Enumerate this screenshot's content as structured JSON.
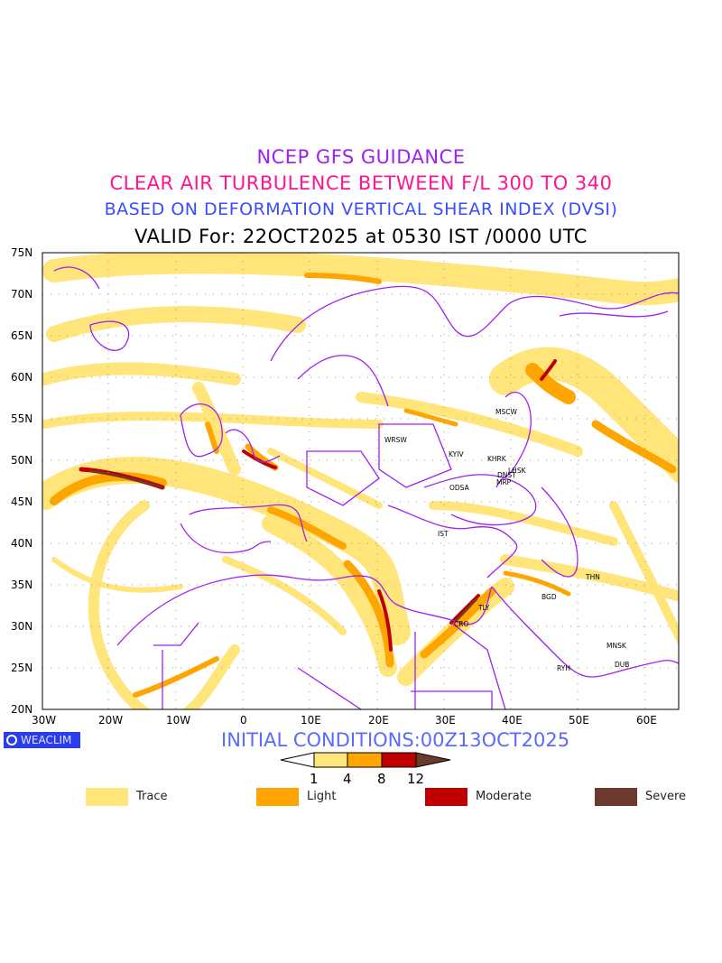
{
  "titles": {
    "line1": "NCEP GFS GUIDANCE",
    "line2": "CLEAR AIR TURBULENCE BETWEEN F/L 300 TO 340",
    "line3": "BASED ON DEFORMATION VERTICAL SHEAR INDEX (DVSI)",
    "line4": "VALID For: 22OCT2025 at 0530 IST /0000 UTC"
  },
  "axes": {
    "lat_labels": [
      "75N",
      "70N",
      "65N",
      "60N",
      "55N",
      "50N",
      "45N",
      "40N",
      "35N",
      "30N",
      "25N",
      "20N"
    ],
    "lon_labels": [
      "30W",
      "20W",
      "10W",
      "0",
      "10E",
      "20E",
      "30E",
      "40E",
      "50E",
      "60E"
    ]
  },
  "cities": [
    "WRSW",
    "MSCW",
    "KYIV",
    "KHRK",
    "LHSK",
    "DNST",
    "MRP",
    "ODSA",
    "IST",
    "THN",
    "BGD",
    "TLY",
    "CRO",
    "MNSK",
    "RYH",
    "DUB"
  ],
  "branding": {
    "logo": "WEACLIM"
  },
  "initial_conditions": "INITIAL CONDITIONS:00Z13OCT2025",
  "colorbar": {
    "ticks": [
      "1",
      "4",
      "8",
      "12"
    ]
  },
  "legend": [
    {
      "label": "Trace",
      "color": "#ffe57a"
    },
    {
      "label": "Light",
      "color": "#ffa500"
    },
    {
      "label": "Moderate",
      "color": "#c00000"
    },
    {
      "label": "Severe",
      "color": "#6b3a2c"
    }
  ],
  "colors": {
    "coast": "#a020f0",
    "title1": "#a020f0",
    "title2": "#ff1493",
    "title3": "#3a4cff",
    "title4": "#000000"
  }
}
